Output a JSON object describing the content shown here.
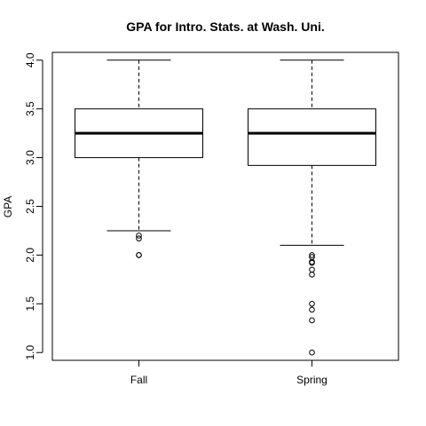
{
  "chart_data": {
    "type": "boxplot",
    "title": "GPA for Intro. Stats. at Wash. Uni.",
    "xlabel": "",
    "ylabel": "GPA",
    "ylim": [
      0.92,
      4.08
    ],
    "yticks": [
      "1.0",
      "1.5",
      "2.0",
      "2.5",
      "3.0",
      "3.5",
      "4.0"
    ],
    "categories": [
      "Fall",
      "Spring"
    ],
    "boxes": [
      {
        "category": "Fall",
        "whisker_low": 2.25,
        "q1": 3.0,
        "median": 3.25,
        "q3": 3.5,
        "whisker_high": 4.0,
        "outliers": [
          2.2,
          2.17,
          2.0,
          2.0
        ]
      },
      {
        "category": "Spring",
        "whisker_low": 2.1,
        "q1": 2.92,
        "median": 3.25,
        "q3": 3.5,
        "whisker_high": 4.0,
        "outliers": [
          2.0,
          1.98,
          1.93,
          1.92,
          1.85,
          1.8,
          1.5,
          1.44,
          1.33,
          1.0
        ]
      }
    ],
    "grid": false,
    "legend": "none"
  }
}
